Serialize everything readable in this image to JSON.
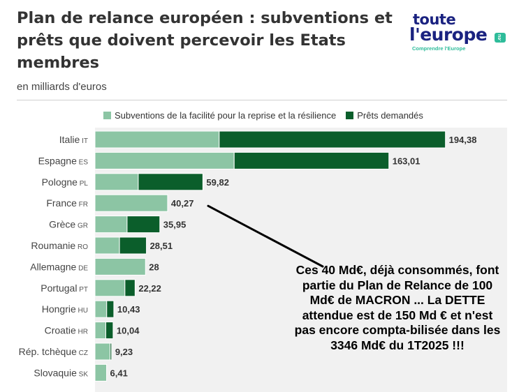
{
  "title": "Plan de relance européen : subventions et prêts que doivent percevoir les Etats membres",
  "subtitle": "en milliards d'euros",
  "logo": {
    "line1": "toute",
    "line2": "l'europe",
    "dot": ".eu",
    "tagline": "Comprendre l'Europe",
    "color": "#1a2280",
    "accent": "#2ebc9a"
  },
  "colors": {
    "grants": "#8cc5a4",
    "loans": "#0b5e2b"
  },
  "chart_data": {
    "type": "bar",
    "orientation": "horizontal",
    "stacked": true,
    "categories": [
      "Italie",
      "Espagne",
      "Pologne",
      "France",
      "Grèce",
      "Roumanie",
      "Allemagne",
      "Portugal",
      "Hongrie",
      "Croatie",
      "Rép. tchèque",
      "Slovaquie"
    ],
    "country_codes": [
      "IT",
      "ES",
      "PL",
      "FR",
      "GR",
      "RO",
      "DE",
      "PT",
      "HU",
      "HR",
      "CZ",
      "SK"
    ],
    "series": [
      {
        "name": "Subventions de la facilité pour la reprise et la résilience",
        "values": [
          68.9,
          77.2,
          24.0,
          40.27,
          17.8,
          13.6,
          28,
          16.6,
          6.5,
          6.0,
          8.4,
          6.41
        ]
      },
      {
        "name": "Prêts demandés",
        "values": [
          125.48,
          85.81,
          35.82,
          0,
          18.15,
          14.91,
          0,
          5.62,
          3.93,
          4.04,
          0.83,
          0
        ]
      }
    ],
    "totals": [
      "194,38",
      "163,01",
      "59,82",
      "40,27",
      "35,95",
      "28,51",
      "28",
      "22,22",
      "10,43",
      "10,04",
      "9,23",
      "6,41"
    ],
    "xlim": [
      0,
      210
    ],
    "grid": true,
    "legend_position": "top"
  },
  "annotation": {
    "text": "Ces 40 Md€, déjà consommés, font partie du Plan de Relance de 100 Md€ de MACRON ... La DETTE attendue est de 150 Md € et n'est pas encore compta-bilisée dans les 3346 Md€ du 1T2025 !!!"
  }
}
